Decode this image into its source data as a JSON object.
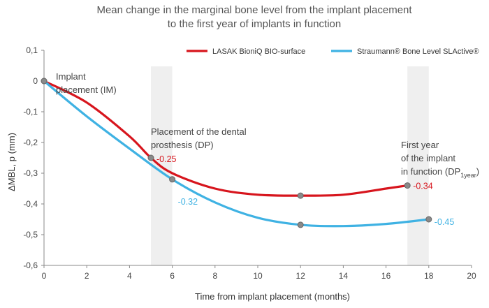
{
  "chart_data": {
    "type": "line",
    "title_line1": "Mean change in the marginal bone level from the implant placement",
    "title_line2": "to the first year of implants in function",
    "xlabel": "Time from implant placement (months)",
    "ylabel": "ΔMBL, p (mm)",
    "xlim": [
      0,
      20
    ],
    "ylim": [
      -0.6,
      0.1
    ],
    "x_ticks": [
      0,
      2,
      4,
      6,
      8,
      10,
      12,
      14,
      16,
      18,
      20
    ],
    "y_ticks": [
      0.1,
      0,
      -0.1,
      -0.2,
      -0.3,
      -0.4,
      -0.5,
      -0.6
    ],
    "y_tick_labels": [
      "0,1",
      "0",
      "-0,1",
      "-0,2",
      "-0,3",
      "-0,4",
      "-0,5",
      "-0,6"
    ],
    "grid": false,
    "legend_position": "top-right",
    "shaded_bands": [
      [
        5,
        6
      ],
      [
        17,
        18
      ]
    ],
    "series": [
      {
        "name": "LASAK BioniQ BIO-surface",
        "color": "#d7151d",
        "curve_x": [
          0,
          2,
          4,
          5,
          6,
          8,
          10,
          12,
          14,
          16,
          17
        ],
        "curve_y": [
          0,
          -0.07,
          -0.18,
          -0.25,
          -0.3,
          -0.35,
          -0.37,
          -0.373,
          -0.37,
          -0.35,
          -0.34
        ],
        "marker_x": [
          0,
          5,
          12,
          17
        ],
        "marker_y": [
          0,
          -0.25,
          -0.373,
          -0.34
        ],
        "labels": [
          {
            "x": 5,
            "y": -0.25,
            "text": "-0.25"
          },
          {
            "x": 17,
            "y": -0.34,
            "text": "-0.34"
          }
        ]
      },
      {
        "name": "Straumann® Bone Level SLActive®",
        "color": "#3fb2e3",
        "curve_x": [
          0,
          2,
          4,
          6,
          8,
          10,
          12,
          14,
          16,
          18
        ],
        "curve_y": [
          0,
          -0.115,
          -0.22,
          -0.32,
          -0.395,
          -0.445,
          -0.468,
          -0.472,
          -0.465,
          -0.45
        ],
        "marker_x": [
          0,
          6,
          12,
          18
        ],
        "marker_y": [
          0,
          -0.32,
          -0.468,
          -0.45
        ],
        "labels": [
          {
            "x": 6,
            "y": -0.32,
            "text": "-0.32"
          },
          {
            "x": 18,
            "y": -0.45,
            "text": "-0.45"
          }
        ]
      }
    ],
    "annotations": [
      {
        "x": 0,
        "lines": [
          "Implant",
          "placement (IM)"
        ]
      },
      {
        "x": 5,
        "lines": [
          "Placement of the dental",
          "prosthesis (DP)"
        ]
      },
      {
        "x": 17,
        "lines": [
          "First year",
          "of the implant",
          "in function (DP"
        ],
        "subscript": "1year",
        "suffix": ")"
      }
    ]
  }
}
